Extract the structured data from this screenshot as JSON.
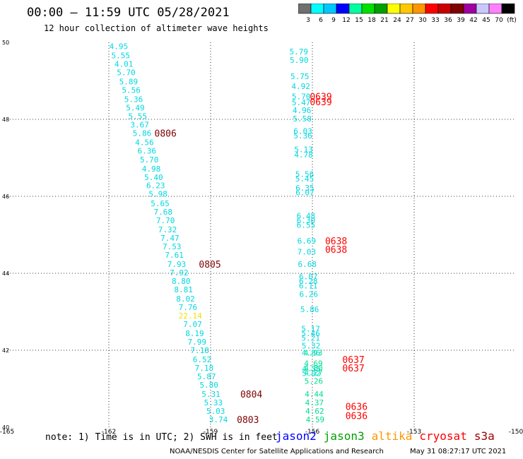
{
  "header": {
    "title": "00:00 – 11:59 UTC 05/28/2021",
    "subtitle": "12 hour collection of altimeter wave heights"
  },
  "colorbar": {
    "colors": [
      "#707070",
      "#00ffff",
      "#00c8ff",
      "#0000ff",
      "#00ffa0",
      "#00e000",
      "#00a000",
      "#ffff00",
      "#ffc800",
      "#ff9600",
      "#ff0000",
      "#c80000",
      "#800000",
      "#a000a0",
      "#c8c8ff",
      "#ff80ff",
      "#000000"
    ],
    "labels": [
      "3",
      "6",
      "9",
      "12",
      "15",
      "18",
      "21",
      "24",
      "27",
      "30",
      "33",
      "36",
      "39",
      "42",
      "45",
      "70",
      "(ft)"
    ]
  },
  "chart_data": {
    "type": "scatter",
    "xlim": [
      -165,
      -150
    ],
    "ylim": [
      40,
      50
    ],
    "x_ticks": [
      "-165",
      "-162",
      "-159",
      "-156",
      "-153",
      "-150"
    ],
    "x_tick_values": [
      -165,
      -162,
      -159,
      -156,
      -153,
      -150
    ],
    "y_ticks": [
      "40",
      "42",
      "44",
      "46",
      "48",
      "50"
    ],
    "y_tick_values": [
      40,
      42,
      44,
      46,
      48,
      50
    ],
    "grid": true,
    "series": [
      {
        "name": "jason3",
        "color": "#00d8e0",
        "points": [
          {
            "x": -161.71,
            "y": 49.9,
            "label": "4.95"
          },
          {
            "x": -161.65,
            "y": 49.66,
            "label": "5.55"
          },
          {
            "x": -161.56,
            "y": 49.44,
            "label": "4.01"
          },
          {
            "x": -161.49,
            "y": 49.22,
            "label": "5.70"
          },
          {
            "x": -161.42,
            "y": 48.98,
            "label": "5.89"
          },
          {
            "x": -161.34,
            "y": 48.76,
            "label": "5.56"
          },
          {
            "x": -161.27,
            "y": 48.52,
            "label": "5.36"
          },
          {
            "x": -161.22,
            "y": 48.3,
            "label": "5.49"
          },
          {
            "x": -161.15,
            "y": 48.08,
            "label": "5.55"
          },
          {
            "x": -161.09,
            "y": 47.86,
            "label": "3.67"
          },
          {
            "x": -161.02,
            "y": 47.64,
            "label": "5.86"
          },
          {
            "x": -160.95,
            "y": 47.4,
            "label": "4.56"
          },
          {
            "x": -160.88,
            "y": 47.18,
            "label": "6.36"
          },
          {
            "x": -160.81,
            "y": 46.95,
            "label": "5.70"
          },
          {
            "x": -160.75,
            "y": 46.72,
            "label": "4.98"
          },
          {
            "x": -160.68,
            "y": 46.5,
            "label": "5.40"
          },
          {
            "x": -160.62,
            "y": 46.28,
            "label": "6.23"
          },
          {
            "x": -160.55,
            "y": 46.06,
            "label": "5.98"
          },
          {
            "x": -160.49,
            "y": 45.82,
            "label": "5.65"
          },
          {
            "x": -160.4,
            "y": 45.6,
            "label": "7.68"
          },
          {
            "x": -160.33,
            "y": 45.38,
            "label": "7.70"
          },
          {
            "x": -160.27,
            "y": 45.14,
            "label": "7.32"
          },
          {
            "x": -160.2,
            "y": 44.92,
            "label": "7.47"
          },
          {
            "x": -160.14,
            "y": 44.7,
            "label": "7.53"
          },
          {
            "x": -160.07,
            "y": 44.48,
            "label": "7.61"
          },
          {
            "x": -160.0,
            "y": 44.24,
            "label": "7.93"
          },
          {
            "x": -159.93,
            "y": 44.02,
            "label": "7.92"
          },
          {
            "x": -159.87,
            "y": 43.8,
            "label": "8.80"
          },
          {
            "x": -159.8,
            "y": 43.58,
            "label": "8.81"
          },
          {
            "x": -159.74,
            "y": 43.34,
            "label": "8.02"
          },
          {
            "x": -159.67,
            "y": 43.12,
            "label": "7.76"
          },
          {
            "x": -159.6,
            "y": 42.9,
            "label": "22.14",
            "color": "#f0e000"
          },
          {
            "x": -159.53,
            "y": 42.68,
            "label": "7.07"
          },
          {
            "x": -159.47,
            "y": 42.44,
            "label": "8.19"
          },
          {
            "x": -159.4,
            "y": 42.22,
            "label": "7.99"
          },
          {
            "x": -159.32,
            "y": 42.0,
            "label": "7.18"
          },
          {
            "x": -159.25,
            "y": 41.76,
            "label": "6.52"
          },
          {
            "x": -159.19,
            "y": 41.54,
            "label": "7.18"
          },
          {
            "x": -159.12,
            "y": 41.32,
            "label": "5.87"
          },
          {
            "x": -159.05,
            "y": 41.1,
            "label": "5.80"
          },
          {
            "x": -158.99,
            "y": 40.86,
            "label": "5.31"
          },
          {
            "x": -158.92,
            "y": 40.64,
            "label": "5.33"
          },
          {
            "x": -158.85,
            "y": 40.42,
            "label": "5.03"
          },
          {
            "x": -158.77,
            "y": 40.2,
            "label": "3.74"
          }
        ]
      },
      {
        "name": "jason3",
        "color": "#00d8e0",
        "points": [
          {
            "x": -156.4,
            "y": 49.76,
            "label": "5.79"
          },
          {
            "x": -156.39,
            "y": 49.54,
            "label": "5.90"
          },
          {
            "x": -156.37,
            "y": 49.12,
            "label": "5.75"
          },
          {
            "x": -156.34,
            "y": 48.86,
            "label": "4.92"
          },
          {
            "x": -156.33,
            "y": 48.6,
            "label": "5.70"
          },
          {
            "x": -156.33,
            "y": 48.44,
            "label": "5.47"
          },
          {
            "x": -156.31,
            "y": 48.24,
            "label": "4.96"
          },
          {
            "x": -156.3,
            "y": 48.02,
            "label": "5.58"
          },
          {
            "x": -156.28,
            "y": 47.7,
            "label": "6.03"
          },
          {
            "x": -156.28,
            "y": 47.58,
            "label": "5.36"
          },
          {
            "x": -156.26,
            "y": 47.22,
            "label": "5.13"
          },
          {
            "x": -156.26,
            "y": 47.08,
            "label": "4.78"
          },
          {
            "x": -156.23,
            "y": 46.58,
            "label": "5.56"
          },
          {
            "x": -156.23,
            "y": 46.46,
            "label": "5.45"
          },
          {
            "x": -156.22,
            "y": 46.22,
            "label": "6.35"
          },
          {
            "x": -156.22,
            "y": 46.1,
            "label": "6.07"
          },
          {
            "x": -156.19,
            "y": 45.5,
            "label": "6.48"
          },
          {
            "x": -156.19,
            "y": 45.38,
            "label": "6.30"
          },
          {
            "x": -156.19,
            "y": 45.26,
            "label": "6.55"
          },
          {
            "x": -156.17,
            "y": 44.84,
            "label": "6.69"
          },
          {
            "x": -156.17,
            "y": 44.56,
            "label": "7.03"
          },
          {
            "x": -156.15,
            "y": 44.24,
            "label": "6.68"
          },
          {
            "x": -156.12,
            "y": 43.92,
            "label": "6.07"
          },
          {
            "x": -156.12,
            "y": 43.8,
            "label": "6.28"
          },
          {
            "x": -156.12,
            "y": 43.68,
            "label": "6.11"
          },
          {
            "x": -156.11,
            "y": 43.46,
            "label": "6.26"
          },
          {
            "x": -156.08,
            "y": 43.06,
            "label": "5.86"
          },
          {
            "x": -156.05,
            "y": 42.56,
            "label": "5.17"
          },
          {
            "x": -156.05,
            "y": 42.44,
            "label": "5.46"
          },
          {
            "x": -156.05,
            "y": 42.32,
            "label": "5.21"
          },
          {
            "x": -156.04,
            "y": 42.12,
            "label": "5.32"
          },
          {
            "x": -156.04,
            "y": 41.94,
            "label": "4.86"
          },
          {
            "x": -156.03,
            "y": 41.52,
            "label": "4.55"
          },
          {
            "x": -156.03,
            "y": 41.4,
            "label": "5.02"
          }
        ]
      },
      {
        "name": "altika",
        "color": "#00e090",
        "points": [
          {
            "x": -155.98,
            "y": 41.94,
            "label": "4.93"
          },
          {
            "x": -155.97,
            "y": 41.66,
            "label": "4.69"
          },
          {
            "x": -155.97,
            "y": 41.54,
            "label": "4.80"
          },
          {
            "x": -155.97,
            "y": 41.42,
            "label": "4.27"
          },
          {
            "x": -155.96,
            "y": 41.2,
            "label": "5.26"
          },
          {
            "x": -155.95,
            "y": 40.86,
            "label": "4.44"
          },
          {
            "x": -155.94,
            "y": 40.64,
            "label": "4.37"
          },
          {
            "x": -155.93,
            "y": 40.42,
            "label": "4.62"
          },
          {
            "x": -155.92,
            "y": 40.2,
            "label": "4.59"
          }
        ]
      }
    ],
    "time_labels": [
      {
        "x": -160.33,
        "y": 47.64,
        "label": "0806",
        "color": "#800000"
      },
      {
        "x": -159.02,
        "y": 44.24,
        "label": "0805",
        "color": "#800000"
      },
      {
        "x": -157.8,
        "y": 40.86,
        "label": "0804",
        "color": "#800000"
      },
      {
        "x": -157.9,
        "y": 40.2,
        "label": "0803",
        "color": "#800000"
      },
      {
        "x": -155.75,
        "y": 48.6,
        "label": "0639",
        "color": "#ff0000"
      },
      {
        "x": -155.75,
        "y": 48.46,
        "label": "0639",
        "color": "#ff0000"
      },
      {
        "x": -155.3,
        "y": 44.84,
        "label": "0638",
        "color": "#ff0000"
      },
      {
        "x": -155.3,
        "y": 44.62,
        "label": "0638",
        "color": "#ff0000"
      },
      {
        "x": -154.79,
        "y": 41.76,
        "label": "0637",
        "color": "#ff0000"
      },
      {
        "x": -154.79,
        "y": 41.54,
        "label": "0637",
        "color": "#ff0000"
      },
      {
        "x": -154.7,
        "y": 40.54,
        "label": "0636",
        "color": "#ff0000"
      },
      {
        "x": -154.7,
        "y": 40.3,
        "label": "0636",
        "color": "#ff0000"
      }
    ]
  },
  "footer": {
    "note": "note: 1) Time is in UTC; 2) SWH is in feet",
    "legend": [
      {
        "label": "jason2",
        "color": "#0000ff"
      },
      {
        "label": "jason3",
        "color": "#00a000"
      },
      {
        "label": "altika",
        "color": "#ff9600"
      },
      {
        "label": "cryosat",
        "color": "#ff0000"
      },
      {
        "label": "s3a",
        "color": "#a00000"
      }
    ],
    "credit": "NOAA/NESDIS Center for Satellite Applications and Research",
    "timestamp": "May 31 08:27:17 UTC 2021"
  }
}
